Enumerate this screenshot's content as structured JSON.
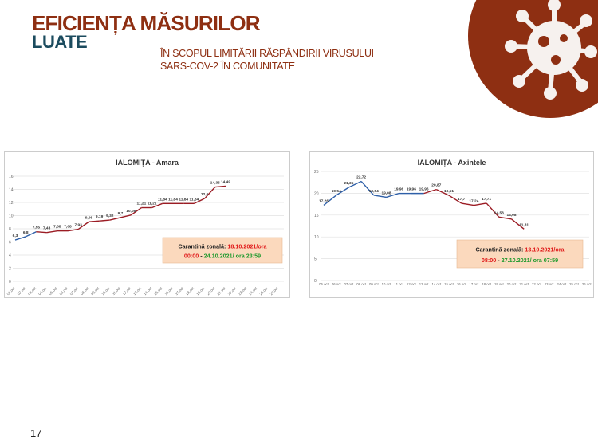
{
  "title_line1": "EFICIENȚA MĂSURILOR",
  "title_line2": "LUATE",
  "subtitle_line1": "ÎN SCOPUL LIMITĂRII RĂSPÂNDIRII VIRUSULUI",
  "subtitle_line2": "SARS-COV-2 ÎN COMUNITATE",
  "page_number": "17",
  "colors": {
    "brand": "#8e2f12",
    "teal": "#1b4b5e",
    "before": "#2e5fa8",
    "during": "#9b1c24",
    "callout_bg": "#fbd9bd"
  },
  "chart_data": [
    {
      "type": "line",
      "title": "IALOMIȚA - Amara",
      "ylim": [
        0,
        16
      ],
      "yticks": [
        0,
        2,
        4,
        6,
        8,
        10,
        12,
        14,
        16
      ],
      "grid": true,
      "categories": [
        "01.oct",
        "02.oct",
        "03.oct",
        "04.oct",
        "05.oct",
        "06.oct",
        "07.oct",
        "08.oct",
        "09.oct",
        "10.oct",
        "11.oct",
        "12.oct",
        "13.oct",
        "14.oct",
        "15.oct",
        "16.oct",
        "17.oct",
        "18.oct",
        "19.oct",
        "20.oct",
        "21.oct",
        "22.oct",
        "23.oct",
        "24.oct",
        "25.oct",
        "26.oct"
      ],
      "values": [
        6.3,
        6.8,
        7.55,
        7.43,
        7.68,
        7.68,
        7.93,
        9.06,
        9.19,
        9.32,
        9.7,
        10.08,
        11.21,
        11.21,
        11.84,
        11.84,
        11.84,
        11.84,
        12.6,
        14.36,
        14.49
      ],
      "labels": [
        "6,3",
        "6,8",
        "7,55",
        "7,43",
        "7,68",
        "7,68",
        "7,93",
        "9,06",
        "9,19",
        "9,32",
        "9,7",
        "10,08",
        "11,21",
        "11,21",
        "11,84",
        "11,84",
        "11,84",
        "11,84",
        "12,6",
        "14,36",
        "14,49"
      ],
      "blue_until_index": 2,
      "callout": {
        "label": "Carantină zonală: ",
        "start": "18.10.2021/ora 00:00",
        "sep": " - ",
        "end": "24.10.2021/ ora 23:59"
      }
    },
    {
      "type": "line",
      "title": "IALOMIȚA - Axintele",
      "ylim": [
        0,
        25
      ],
      "yticks": [
        0,
        5,
        10,
        15,
        20,
        25
      ],
      "grid": true,
      "categories": [
        "05.oct",
        "06.oct",
        "07.oct",
        "08.oct",
        "09.oct",
        "10.oct",
        "11.oct",
        "12.oct",
        "13.oct",
        "14.oct",
        "15.oct",
        "16.oct",
        "17.oct",
        "18.oct",
        "19.oct",
        "20.oct",
        "21.oct",
        "22.oct",
        "23.oct",
        "24.oct",
        "25.oct",
        "26.oct"
      ],
      "values": [
        17.26,
        19.54,
        21.35,
        22.72,
        19.54,
        19.08,
        19.96,
        19.96,
        19.96,
        20.87,
        19.51,
        17.7,
        17.24,
        17.71,
        14.53,
        14.08,
        11.81
      ],
      "labels": [
        "17,26",
        "19,54",
        "21,35",
        "22,72",
        "19,54",
        "19,08",
        "19,96",
        "19,96",
        "19,96",
        "20,87",
        "19,51",
        "17,7",
        "17,24",
        "17,71",
        "14,53",
        "14,08",
        "11,81"
      ],
      "blue_until_index": 8,
      "callout": {
        "label": "Carantină zonală: ",
        "start": "13.10.2021/ora 08:00",
        "sep": " - ",
        "end": "27.10.2021/ ora 07:59"
      }
    }
  ]
}
